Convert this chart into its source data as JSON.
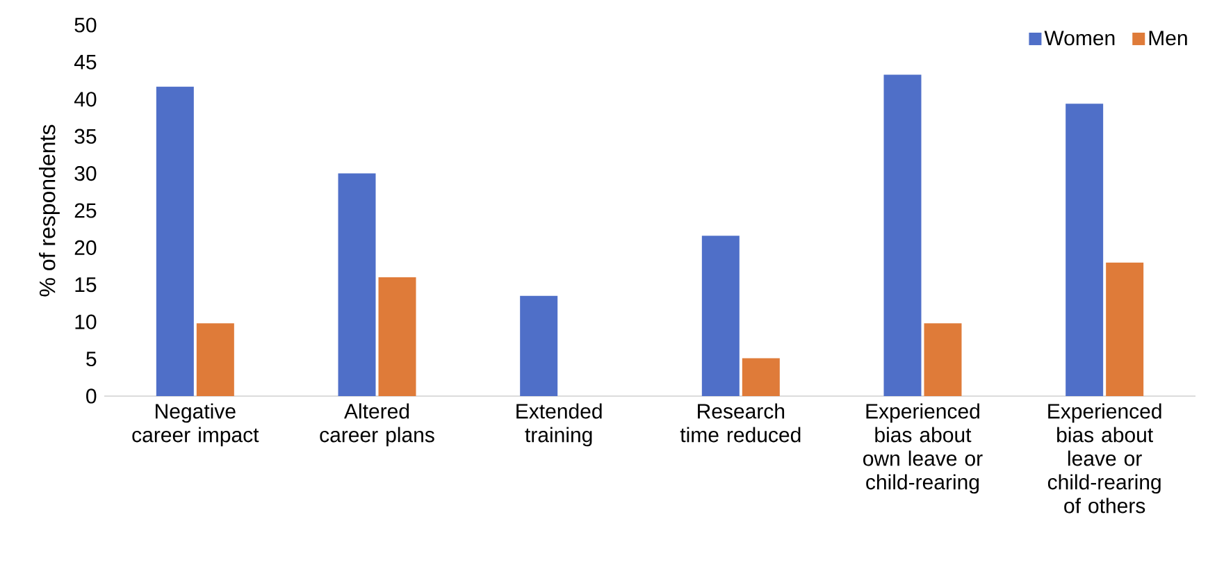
{
  "chart_data": {
    "type": "bar",
    "ylabel": "% of respondents",
    "categories": [
      "Negative career impact",
      "Altered career plans",
      "Extended training",
      "Research time reduced",
      "Experienced bias about own leave or child-rearing",
      "Experienced bias about leave or child-rearing of others"
    ],
    "series": [
      {
        "name": "Women",
        "color": "#4f6fc8",
        "values": [
          41.7,
          30,
          13.5,
          21.6,
          43.3,
          39.4
        ]
      },
      {
        "name": "Men",
        "color": "#df7b39",
        "values": [
          9.8,
          16,
          null,
          5.1,
          9.8,
          18
        ]
      }
    ],
    "ylim": [
      0,
      50
    ],
    "yticks": [
      0,
      5,
      10,
      15,
      20,
      25,
      30,
      35,
      40,
      45,
      50
    ],
    "grid": false,
    "legend": "top right"
  }
}
